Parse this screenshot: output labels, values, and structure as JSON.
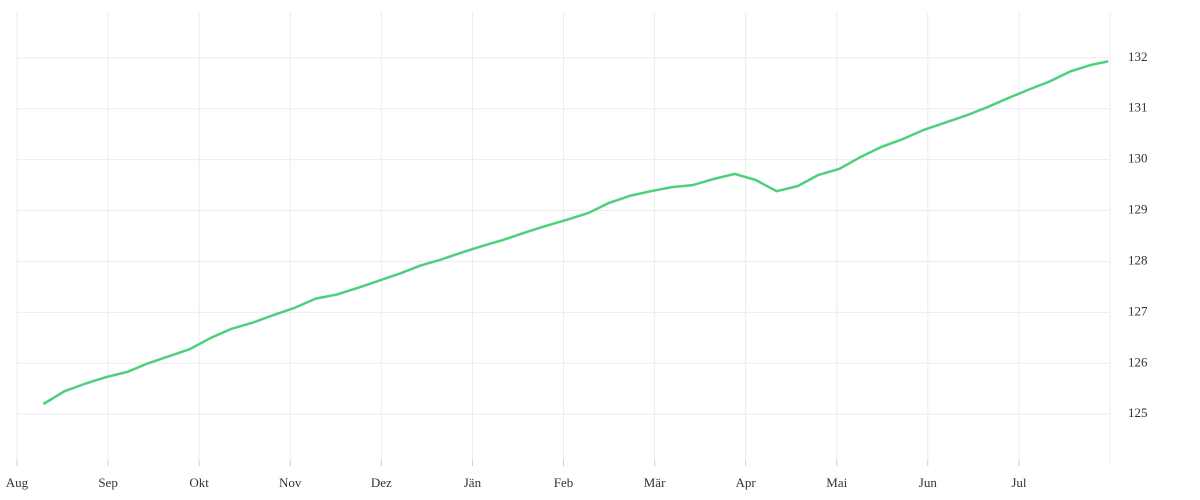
{
  "chart_data": {
    "type": "line",
    "x": [
      0.29,
      0.52,
      0.75,
      0.98,
      1.21,
      1.44,
      1.67,
      1.9,
      2.13,
      2.36,
      2.59,
      2.82,
      3.05,
      3.28,
      3.51,
      3.74,
      3.97,
      4.2,
      4.43,
      4.66,
      4.89,
      5.12,
      5.35,
      5.58,
      5.81,
      6.04,
      6.27,
      6.5,
      6.73,
      6.96,
      7.19,
      7.42,
      7.65,
      7.88,
      8.11,
      8.34,
      8.57,
      8.8,
      9.03,
      9.26,
      9.49,
      9.72,
      9.95,
      10.18,
      10.41,
      10.64,
      10.87,
      11.1,
      11.33,
      11.56,
      11.79,
      11.98
    ],
    "series": [
      {
        "color": "#4cd07d",
        "values": [
          125.2,
          125.45,
          125.6,
          125.73,
          125.83,
          126.0,
          126.14,
          126.28,
          126.5,
          126.68,
          126.8,
          126.95,
          127.09,
          127.27,
          127.35,
          127.48,
          127.62,
          127.76,
          127.92,
          128.04,
          128.18,
          128.31,
          128.43,
          128.57,
          128.7,
          128.82,
          128.95,
          129.15,
          129.29,
          129.38,
          129.46,
          129.5,
          129.62,
          129.72,
          129.6,
          129.38,
          129.48,
          129.7,
          129.82,
          130.05,
          130.25,
          130.4,
          130.58,
          130.72,
          130.86,
          131.02,
          131.2,
          131.37,
          131.53,
          131.73,
          131.86,
          131.93
        ]
      }
    ],
    "xlim": [
      0,
      12
    ],
    "xticks": [
      {
        "value": 0,
        "label": "Aug"
      },
      {
        "value": 1,
        "label": "Sep"
      },
      {
        "value": 2,
        "label": "Okt"
      },
      {
        "value": 3,
        "label": "Nov"
      },
      {
        "value": 4,
        "label": "Dez"
      },
      {
        "value": 5,
        "label": "Jän"
      },
      {
        "value": 6,
        "label": "Feb"
      },
      {
        "value": 7,
        "label": "Mär"
      },
      {
        "value": 8,
        "label": "Apr"
      },
      {
        "value": 9,
        "label": "Mai"
      },
      {
        "value": 10,
        "label": "Jun"
      },
      {
        "value": 11,
        "label": "Jul"
      }
    ],
    "ylim": [
      124.1,
      132.9
    ],
    "yticks": [
      125,
      126,
      127,
      128,
      129,
      130,
      131,
      132
    ],
    "grid": true
  }
}
